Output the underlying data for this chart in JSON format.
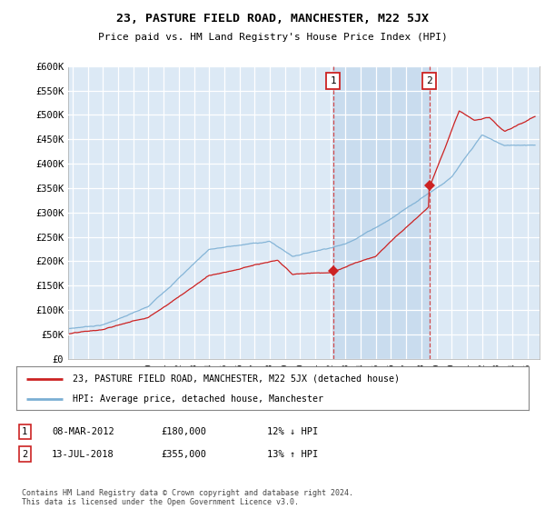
{
  "title": "23, PASTURE FIELD ROAD, MANCHESTER, M22 5JX",
  "subtitle": "Price paid vs. HM Land Registry's House Price Index (HPI)",
  "ylabel_ticks": [
    "£0",
    "£50K",
    "£100K",
    "£150K",
    "£200K",
    "£250K",
    "£300K",
    "£350K",
    "£400K",
    "£450K",
    "£500K",
    "£550K",
    "£600K"
  ],
  "ytick_values": [
    0,
    50000,
    100000,
    150000,
    200000,
    250000,
    300000,
    350000,
    400000,
    450000,
    500000,
    550000,
    600000
  ],
  "hpi_color": "#7bafd4",
  "price_color": "#cc2222",
  "bg_color": "#dce9f5",
  "shade_color": "#c5d9ee",
  "legend_label_red": "23, PASTURE FIELD ROAD, MANCHESTER, M22 5JX (detached house)",
  "legend_label_blue": "HPI: Average price, detached house, Manchester",
  "marker1_date_x": 2012.18,
  "marker1_price": 180000,
  "marker1_label": "1",
  "marker2_date_x": 2018.53,
  "marker2_price": 355000,
  "marker2_label": "2",
  "footer": "Contains HM Land Registry data © Crown copyright and database right 2024.\nThis data is licensed under the Open Government Licence v3.0.",
  "xmin": 1994.7,
  "xmax": 2025.8,
  "ymin": 0,
  "ymax": 600000
}
